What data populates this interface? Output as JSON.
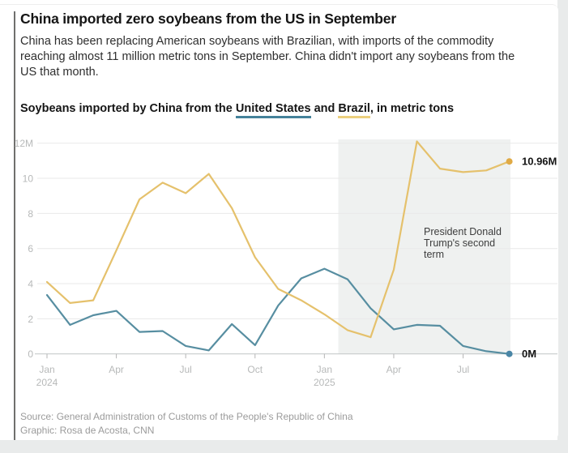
{
  "header": {
    "title": "China imported zero soybeans from the US in September",
    "description_lines": [
      "China has been replacing American soybeans with Brazilian, with imports of the commodity",
      "reaching almost 11 million metric tons in September. China didn't import any soybeans from the",
      "US that month."
    ]
  },
  "chart_heading": {
    "pre": "Soybeans imported by China from the ",
    "us_label": "United States",
    "mid": " and ",
    "brazil_label": "Brazil",
    "post": ", in metric tons"
  },
  "chart_data": {
    "type": "line",
    "unit": "million metric tons",
    "ylim": [
      0,
      12
    ],
    "grid": true,
    "x": [
      "Jan 2024",
      "Feb 2024",
      "Mar 2024",
      "Apr 2024",
      "May 2024",
      "Jun 2024",
      "Jul 2024",
      "Aug 2024",
      "Sep 2024",
      "Oct 2024",
      "Nov 2024",
      "Dec 2024",
      "Jan 2025",
      "Feb 2025",
      "Mar 2025",
      "Apr 2025",
      "May 2025",
      "Jun 2025",
      "Jul 2025",
      "Aug 2025",
      "Sep 2025"
    ],
    "series": [
      {
        "id": "us",
        "name": "United States",
        "color": "#578ea1",
        "dot_color": "#4a86a6",
        "end_label": "0M",
        "values": [
          3.35,
          1.65,
          2.2,
          2.45,
          1.25,
          1.3,
          0.45,
          0.2,
          1.7,
          0.5,
          2.75,
          4.3,
          4.85,
          4.25,
          2.6,
          1.4,
          1.65,
          1.6,
          0.45,
          0.15,
          0
        ]
      },
      {
        "id": "brazil",
        "name": "Brazil",
        "color": "#e5c16c",
        "dot_color": "#e0aa45",
        "end_label": "10.96M",
        "values": [
          4.1,
          2.9,
          3.05,
          5.9,
          8.8,
          9.75,
          9.15,
          10.25,
          8.3,
          5.5,
          3.7,
          3.05,
          2.25,
          1.35,
          0.95,
          4.8,
          12.1,
          10.55,
          10.35,
          10.45,
          10.96
        ]
      }
    ],
    "y_ticks": [
      {
        "value": 0,
        "label": "0"
      },
      {
        "value": 2,
        "label": "2"
      },
      {
        "value": 4,
        "label": "4"
      },
      {
        "value": 6,
        "label": "6"
      },
      {
        "value": 8,
        "label": "8"
      },
      {
        "value": 10,
        "label": "10"
      },
      {
        "value": 12,
        "label": "12M"
      }
    ],
    "x_ticks": [
      {
        "month": 0,
        "label": "Jan",
        "year": "2024"
      },
      {
        "month": 3,
        "label": "Apr"
      },
      {
        "month": 6,
        "label": "Jul"
      },
      {
        "month": 9,
        "label": "Oct"
      },
      {
        "month": 12,
        "label": "Jan",
        "year": "2025"
      },
      {
        "month": 15,
        "label": "Apr"
      },
      {
        "month": 18,
        "label": "Jul"
      }
    ],
    "annotation": {
      "lines": [
        "President Donald",
        "Trump's second",
        "term"
      ]
    },
    "shaded_region": {
      "label": "President Donald Trump's second term",
      "start_month": 12.6,
      "end_month": 20.05
    },
    "colors": {
      "grid": "#e9e9e9",
      "axis": "#c7cbcc",
      "tick": "#b5b5b5",
      "shade": "#eff1f0"
    }
  },
  "footer": {
    "source": "Source: General Administration of Customs of the People's Republic of China",
    "credit": "Graphic: Rosa de Acosta, CNN"
  }
}
